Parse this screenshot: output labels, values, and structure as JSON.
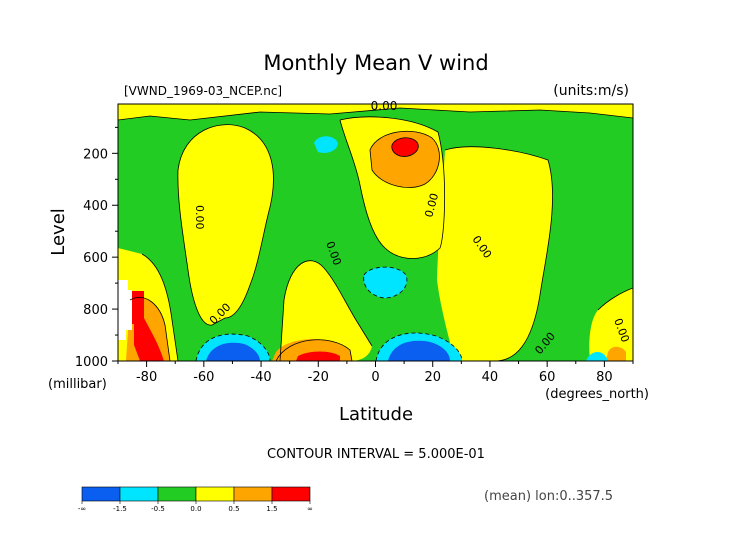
{
  "chart_data": {
    "type": "contour",
    "title": "Monthly Mean V wind",
    "file_label": "[VWND_1969-03_NCEP.nc]",
    "units_label": "(units:m/s)",
    "xlabel": "Latitude",
    "x_units": "(degrees_north)",
    "ylabel": "Level",
    "y_units": "(millibar)",
    "x_ticks": [
      "-80",
      "-60",
      "-40",
      "-20",
      "0",
      "20",
      "40",
      "60",
      "80"
    ],
    "y_ticks": [
      "200",
      "400",
      "600",
      "800",
      "1000"
    ],
    "xlim": [
      -90,
      90
    ],
    "ylim": [
      1000,
      10
    ],
    "contour_interval_text": "CONTOUR INTERVAL = 5.000E-01",
    "contour_labels": [
      "0.00",
      "0.00",
      "0.00",
      "0.00",
      "0.00",
      "0.00",
      "0.00",
      "0.00",
      "0.00"
    ],
    "colorbar": {
      "labels": [
        "-∞",
        "-1.5",
        "-0.5",
        "0.0",
        "0.5",
        "1.5",
        "∞"
      ],
      "colors": [
        "#0a5ff0",
        "#00e5ff",
        "#22cc22",
        "#ffff00",
        "#ffa500",
        "#ff0000"
      ]
    },
    "footer_text": "(mean) lon:0..357.5"
  }
}
